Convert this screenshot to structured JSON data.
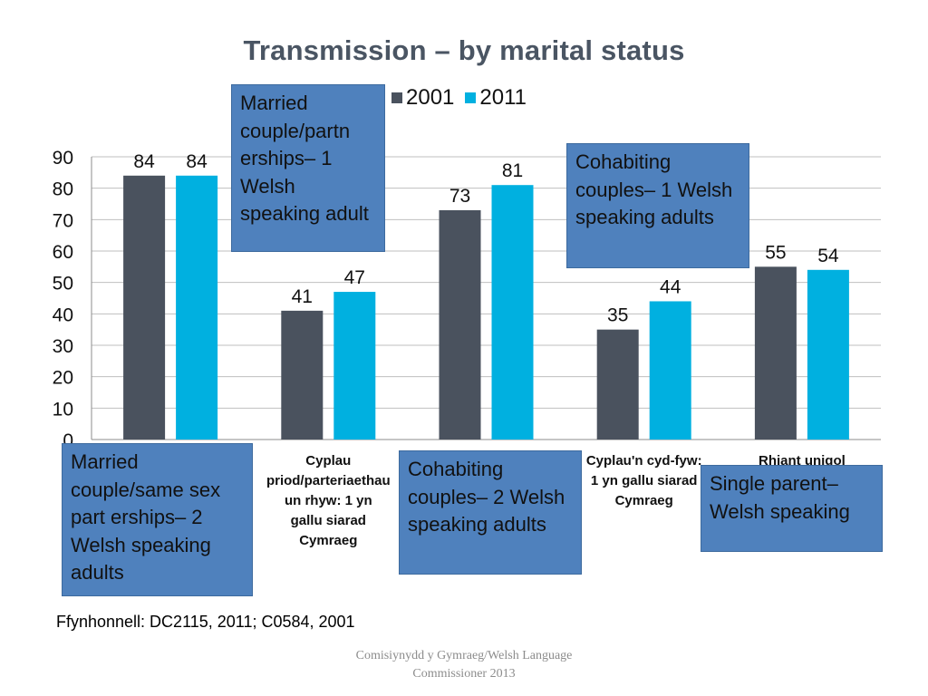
{
  "title": "Transmission – by marital status",
  "colors": {
    "series_2001": "#4a525e",
    "series_2011": "#00b0e0",
    "box": "#4f81bd",
    "grid": "#bfbfbf"
  },
  "chart_data": {
    "type": "bar",
    "title": "Transmission – by marital status",
    "categories": [
      "",
      "Cyplau priod/parteriaethau un rhyw: 1 yn gallu siarad Cymraeg",
      "",
      "Cyplau'n cyd-fyw: 1 yn gallu siarad Cymraeg",
      "Rhiant unigol"
    ],
    "series": [
      {
        "name": "2001",
        "values": [
          84,
          41,
          73,
          35,
          55
        ]
      },
      {
        "name": "2011",
        "values": [
          84,
          47,
          81,
          44,
          54
        ]
      }
    ],
    "ylim": [
      0,
      90
    ],
    "yticks": [
      0,
      10,
      20,
      30,
      40,
      50,
      60,
      70,
      80,
      90
    ],
    "grid": true,
    "legend": "top"
  },
  "legend_items": [
    "2001",
    "2011"
  ],
  "overlays": {
    "married_one": "Married couple/partn erships– 1 Welsh speaking adult",
    "cohab_one": "Cohabiting couples– 1 Welsh speaking adults",
    "married_two": "Married couple/same sex part erships– 2 Welsh speaking adults",
    "cohab_two": "Cohabiting couples– 2 Welsh speaking adults",
    "single": "Single parent– Welsh speaking"
  },
  "source": "Ffynhonnell: DC2115, 2011; C0584, 2001",
  "footer": {
    "line1": "Comisiynydd y Gymraeg/Welsh Language",
    "line2": "Commissioner 2013"
  }
}
